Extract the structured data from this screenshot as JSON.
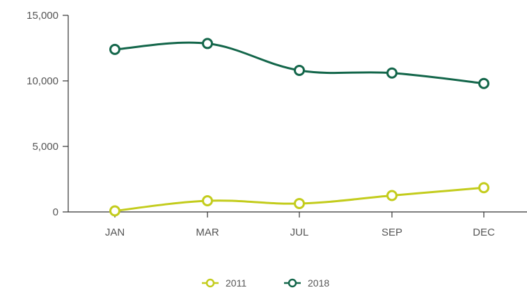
{
  "chart_data": {
    "type": "line",
    "title": "",
    "xlabel": "",
    "ylabel": "",
    "categories": [
      "JAN",
      "MAR",
      "JUL",
      "SEP",
      "DEC"
    ],
    "ylim": [
      0,
      15000
    ],
    "yticks": [
      0,
      5000,
      10000,
      15000
    ],
    "ytick_labels": [
      "0",
      "5,000",
      "10,000",
      "15,000"
    ],
    "grid": false,
    "legend_position": "bottom",
    "series": [
      {
        "name": "2011",
        "color": "#c3cc1c",
        "values": [
          80,
          850,
          640,
          1250,
          1850
        ]
      },
      {
        "name": "2018",
        "color": "#13664a",
        "values": [
          12400,
          12850,
          10800,
          10600,
          9800
        ]
      }
    ]
  }
}
